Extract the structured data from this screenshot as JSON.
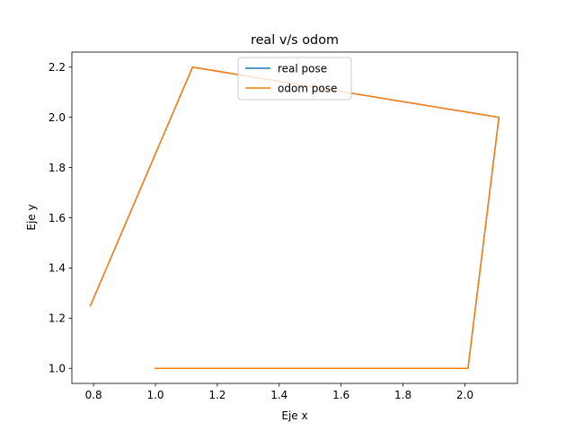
{
  "chart_data": {
    "type": "line",
    "title": "real v/s odom",
    "xlabel": "Eje x",
    "ylabel": "Eje y",
    "xlim": [
      0.73,
      2.17
    ],
    "ylim": [
      0.94,
      2.26
    ],
    "xticks": [
      0.8,
      1.0,
      1.2,
      1.4,
      1.6,
      1.8,
      2.0
    ],
    "xtick_labels": [
      "0.8",
      "1.0",
      "1.2",
      "1.4",
      "1.6",
      "1.8",
      "2.0"
    ],
    "yticks": [
      1.0,
      1.2,
      1.4,
      1.6,
      1.8,
      2.0,
      2.2
    ],
    "ytick_labels": [
      "1.0",
      "1.2",
      "1.4",
      "1.6",
      "1.8",
      "2.0",
      "2.2"
    ],
    "grid": false,
    "legend_position": "upper center",
    "series": [
      {
        "name": "real pose",
        "color": "#1f77b4",
        "x": [
          1.0,
          2.01,
          2.11,
          1.12,
          0.79
        ],
        "y": [
          1.0,
          1.0,
          2.0,
          2.2,
          1.25
        ]
      },
      {
        "name": "odom pose",
        "color": "#ff7f0e",
        "x": [
          1.0,
          2.01,
          2.11,
          1.12,
          0.79
        ],
        "y": [
          1.0,
          1.0,
          2.0,
          2.2,
          1.25
        ]
      }
    ]
  }
}
